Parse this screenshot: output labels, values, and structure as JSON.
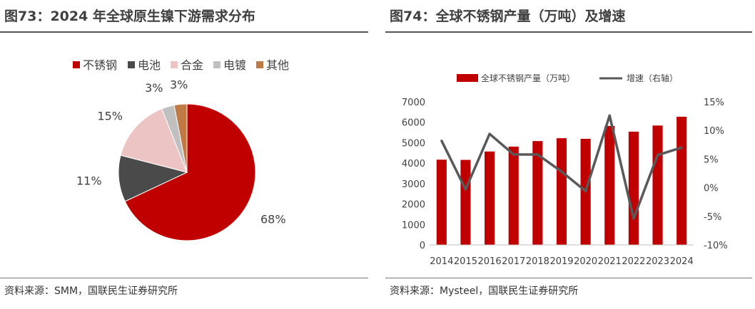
{
  "left": {
    "title": "图73：2024 年全球原生镍下游需求分布",
    "source": "资料来源：SMM，国联民生证券研究所"
  },
  "right": {
    "title": "图74：全球不锈钢产量（万吨）及增速",
    "source": "资料来源：Mysteel，国联民生证券研究所"
  },
  "chart_data": [
    {
      "type": "pie",
      "title": "",
      "legend_position": "top",
      "slices": [
        {
          "label": "不锈钢",
          "value": 68,
          "value_label": "68%",
          "color": "#c00000"
        },
        {
          "label": "电池",
          "value": 11,
          "value_label": "11%",
          "color": "#4a4a4a"
        },
        {
          "label": "合金",
          "value": 15,
          "value_label": "15%",
          "color": "#ecc4c4"
        },
        {
          "label": "电镀",
          "value": 3,
          "value_label": "3%",
          "color": "#c0c0c0"
        },
        {
          "label": "其他",
          "value": 3,
          "value_label": "3%",
          "color": "#c07a45"
        }
      ]
    },
    {
      "type": "bar+line",
      "title": "",
      "legend_position": "top",
      "categories": [
        "2014",
        "2015",
        "2016",
        "2017",
        "2018",
        "2019",
        "2020",
        "2021",
        "2022",
        "2023",
        "2024"
      ],
      "series": [
        {
          "name": "全球不锈钢产量（万吨）",
          "type": "bar",
          "axis": "left",
          "color": "#c00000",
          "values": [
            4170,
            4160,
            4570,
            4810,
            5080,
            5220,
            5190,
            5820,
            5540,
            5840,
            6270
          ]
        },
        {
          "name": "增速（右轴）",
          "type": "line",
          "axis": "right",
          "color": "#595959",
          "values": [
            8.2,
            -0.3,
            9.4,
            5.8,
            5.8,
            2.8,
            -0.6,
            12.6,
            -5.4,
            5.7,
            7.0
          ]
        }
      ],
      "y_left": {
        "min": 0,
        "max": 7000,
        "step": 1000,
        "ticks": [
          "0",
          "1000",
          "2000",
          "3000",
          "4000",
          "5000",
          "6000",
          "7000"
        ]
      },
      "y_right": {
        "min": -10,
        "max": 15,
        "step": 5,
        "ticks": [
          "-10%",
          "-5%",
          "0%",
          "5%",
          "10%",
          "15%"
        ]
      },
      "grid": false
    }
  ]
}
